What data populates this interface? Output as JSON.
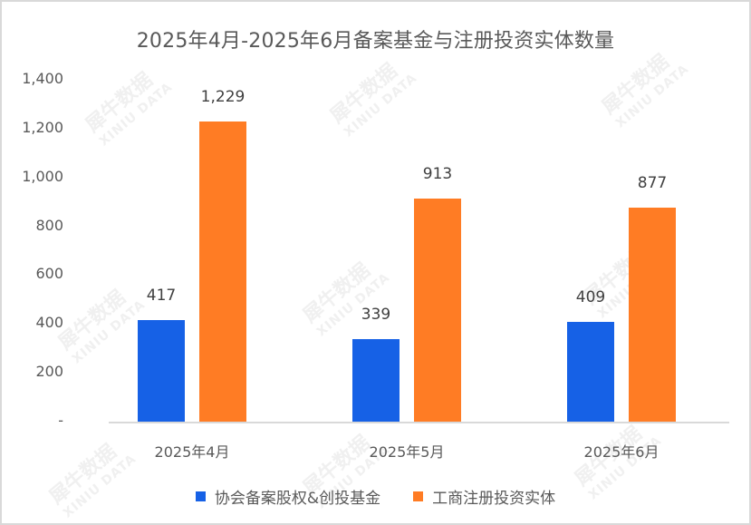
{
  "chart_data": {
    "type": "bar",
    "title": "2025年4月-2025年6月备案基金与注册投资实体数量",
    "categories": [
      "2025年4月",
      "2025年5月",
      "2025年6月"
    ],
    "series": [
      {
        "name": "协会备案股权&创投基金",
        "color": "#1661E6",
        "values": [
          417,
          339,
          409
        ],
        "labels": [
          "417",
          "339",
          "409"
        ]
      },
      {
        "name": "工商注册投资实体",
        "color": "#FF7C24",
        "values": [
          1229,
          913,
          877
        ],
        "labels": [
          "1,229",
          "913",
          "877"
        ]
      }
    ],
    "xlabel": "",
    "ylabel": "",
    "ylim": [
      0,
      1400
    ],
    "yticks": [
      "-",
      "200",
      "400",
      "600",
      "800",
      "1,000",
      "1,200",
      "1,400"
    ],
    "grid": false,
    "legend_position": "bottom"
  },
  "watermark": {
    "cn": "犀牛数据",
    "en": "XINIU DATA"
  }
}
